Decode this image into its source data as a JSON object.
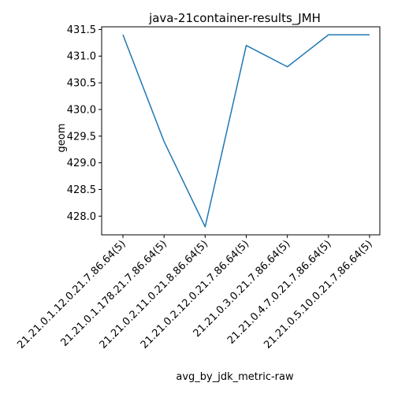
{
  "chart_data": {
    "type": "line",
    "title": "java-21container-results_JMH",
    "xlabel": "avg_by_jdk_metric-raw",
    "ylabel": "geom",
    "categories": [
      "21.21.0.1.12.0.21.7.86.64(5)",
      "21.21.0.1.178.21.7.86.64(5)",
      "21.21.0.2.11.0.21.8.86.64(5)",
      "21.21.0.2.12.0.21.7.86.64(5)",
      "21.21.0.3.0.21.7.86.64(5)",
      "21.21.0.4.7.0.21.7.86.64(5)",
      "21.21.0.5.10.0.21.7.86.64(5)"
    ],
    "series": [
      {
        "values": [
          431.4,
          429.4,
          427.8,
          431.2,
          430.8,
          431.4,
          431.4
        ]
      }
    ],
    "ylim": [
      427.65,
      431.55
    ],
    "yticks": [
      "428.0",
      "428.5",
      "429.0",
      "429.5",
      "430.0",
      "430.5",
      "431.0",
      "431.5"
    ],
    "grid": false,
    "line_color": "#1f77b4"
  }
}
